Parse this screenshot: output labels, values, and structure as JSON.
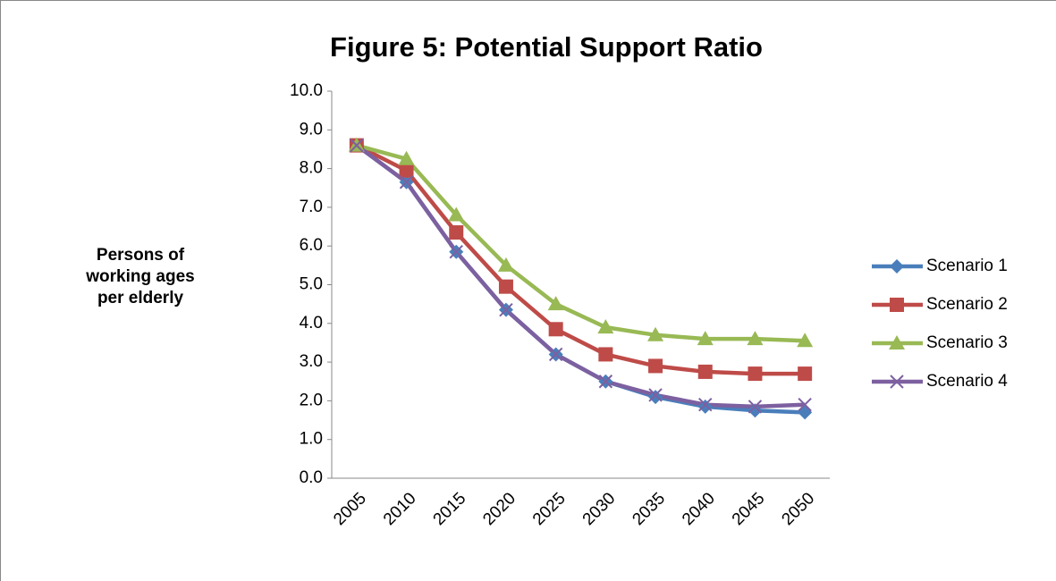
{
  "chart_data": {
    "type": "line",
    "title": "Figure 5: Potential Support Ratio",
    "y_label": "Persons of working ages per elderly",
    "categories": [
      "2005",
      "2010",
      "2015",
      "2020",
      "2025",
      "2030",
      "2035",
      "2040",
      "2045",
      "2050"
    ],
    "series": [
      {
        "name": "Scenario 1",
        "color": "#4a7ebb",
        "marker": "diamond",
        "values": [
          8.6,
          7.65,
          5.85,
          4.35,
          3.2,
          2.5,
          2.1,
          1.85,
          1.75,
          1.7
        ]
      },
      {
        "name": "Scenario 2",
        "color": "#be4b48",
        "marker": "square",
        "values": [
          8.6,
          7.95,
          6.35,
          4.95,
          3.85,
          3.2,
          2.9,
          2.75,
          2.7,
          2.7
        ]
      },
      {
        "name": "Scenario 3",
        "color": "#98b954",
        "marker": "triangle",
        "values": [
          8.6,
          8.25,
          6.8,
          5.5,
          4.5,
          3.9,
          3.7,
          3.6,
          3.6,
          3.55
        ]
      },
      {
        "name": "Scenario 4",
        "color": "#7d60a0",
        "marker": "x",
        "values": [
          8.6,
          7.65,
          5.85,
          4.35,
          3.2,
          2.5,
          2.15,
          1.9,
          1.85,
          1.9
        ]
      }
    ],
    "ylim": [
      0,
      10
    ],
    "yticks": [
      {
        "value": 0,
        "label": "0.0"
      },
      {
        "value": 1,
        "label": "1.0"
      },
      {
        "value": 2,
        "label": "2.0"
      },
      {
        "value": 3,
        "label": "3.0"
      },
      {
        "value": 4,
        "label": "4.0"
      },
      {
        "value": 5,
        "label": "5.0"
      },
      {
        "value": 6,
        "label": "6.0"
      },
      {
        "value": 7,
        "label": "7.0"
      },
      {
        "value": 8,
        "label": "8.0"
      },
      {
        "value": 9,
        "label": "9.0"
      },
      {
        "value": 10,
        "label": "10.0"
      }
    ],
    "grid": false,
    "legend": "right"
  }
}
